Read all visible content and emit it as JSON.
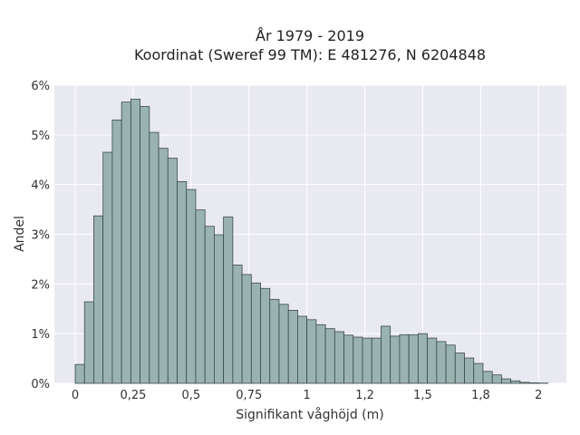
{
  "chart_data": {
    "type": "bar",
    "title": "År 1979 - 2019",
    "subtitle": "Koordinat (Sweref 99 TM): E 481276, N 6204848",
    "xlabel": "Signifikant våghöjd (m)",
    "ylabel": "Andel",
    "xlim": [
      -0.09,
      2.12
    ],
    "ylim": [
      0,
      6
    ],
    "x_ticks": [
      {
        "value": 0,
        "label": "0"
      },
      {
        "value": 0.25,
        "label": "0,25"
      },
      {
        "value": 0.5,
        "label": "0,5"
      },
      {
        "value": 0.75,
        "label": "0,75"
      },
      {
        "value": 1,
        "label": "1"
      },
      {
        "value": 1.25,
        "label": "1,2"
      },
      {
        "value": 1.5,
        "label": "1,5"
      },
      {
        "value": 1.75,
        "label": "1,8"
      },
      {
        "value": 2,
        "label": "2"
      }
    ],
    "y_ticks": [
      {
        "value": 0,
        "label": "0%"
      },
      {
        "value": 1,
        "label": "1%"
      },
      {
        "value": 2,
        "label": "2%"
      },
      {
        "value": 3,
        "label": "3%"
      },
      {
        "value": 4,
        "label": "4%"
      },
      {
        "value": 5,
        "label": "5%"
      },
      {
        "value": 6,
        "label": "6%"
      }
    ],
    "grid": true,
    "colors": {
      "bar_fill": "#9ab3b1",
      "bar_stroke": "#3a4a48",
      "plot_bg": "#e9e9f1",
      "grid": "#ffffff"
    },
    "bin_width": 0.04,
    "x": [
      0.02,
      0.06,
      0.1,
      0.14,
      0.18,
      0.22,
      0.26,
      0.3,
      0.34,
      0.38,
      0.42,
      0.46,
      0.5,
      0.54,
      0.58,
      0.62,
      0.66,
      0.7,
      0.74,
      0.78,
      0.82,
      0.86,
      0.9,
      0.94,
      0.98,
      1.02,
      1.06,
      1.1,
      1.14,
      1.18,
      1.22,
      1.26,
      1.3,
      1.34,
      1.38,
      1.42,
      1.46,
      1.5,
      1.54,
      1.58,
      1.62,
      1.66,
      1.7,
      1.74,
      1.78,
      1.82,
      1.86,
      1.9,
      1.94,
      1.98,
      2.02
    ],
    "values": [
      0.38,
      1.64,
      3.37,
      4.65,
      5.3,
      5.66,
      5.72,
      5.57,
      5.05,
      4.73,
      4.53,
      4.06,
      3.9,
      3.49,
      3.16,
      2.99,
      3.35,
      2.38,
      2.19,
      2.02,
      1.91,
      1.69,
      1.59,
      1.47,
      1.35,
      1.28,
      1.18,
      1.1,
      1.04,
      0.97,
      0.93,
      0.91,
      0.91,
      1.15,
      0.95,
      0.98,
      0.98,
      1.0,
      0.91,
      0.84,
      0.77,
      0.61,
      0.51,
      0.4,
      0.24,
      0.17,
      0.09,
      0.05,
      0.02,
      0.01,
      0.005
    ]
  }
}
